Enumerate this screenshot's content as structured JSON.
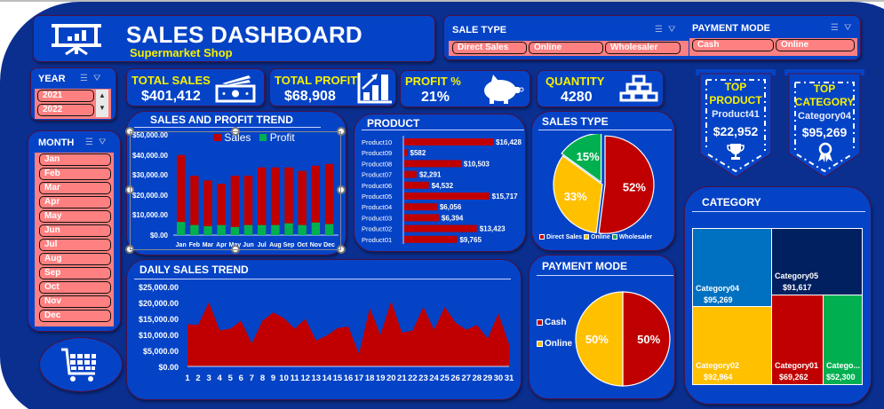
{
  "header": {
    "title": "SALES DASHBOARD",
    "subtitle": "Supermarket Shop",
    "icon": "presentation-chart-icon"
  },
  "slicers": {
    "sale_type": {
      "label": "SALE TYPE",
      "items": [
        "Direct Sales",
        "Online",
        "Wholesaler"
      ]
    },
    "payment_mode": {
      "label": "PAYMENT MODE",
      "items": [
        "Cash",
        "Online"
      ]
    },
    "year": {
      "label": "YEAR",
      "items": [
        "2021",
        "2022"
      ]
    },
    "month": {
      "label": "MONTH",
      "items": [
        "Jan",
        "Feb",
        "Mar",
        "Apr",
        "May",
        "Jun",
        "Jul",
        "Aug",
        "Sep",
        "Oct",
        "Nov",
        "Dec"
      ]
    },
    "icons": {
      "multi_select": "multi-select-icon",
      "clear_filter": "clear-filter-icon"
    }
  },
  "kpis": {
    "total_sales": {
      "label": "TOTAL SALES",
      "value": "$401,412",
      "icon": "money-icon"
    },
    "total_profit": {
      "label": "TOTAL PROFIT",
      "value": "$68,908",
      "icon": "growth-chart-icon"
    },
    "profit_pct": {
      "label": "PROFIT %",
      "value": "21%",
      "icon": "piggy-bank-icon"
    },
    "quantity": {
      "label": "QUANTITY",
      "value": "4280",
      "icon": "gold-bars-icon"
    }
  },
  "top_product": {
    "line1": "TOP",
    "line2": "PRODUCT",
    "name": "Product41",
    "value": "$22,952",
    "icon": "trophy-icon"
  },
  "top_category": {
    "line1": "TOP",
    "line2": "CATEGORY",
    "name": "Category04",
    "value": "$95,269",
    "icon": "award-ribbon-icon"
  },
  "colors": {
    "background": "#0b2f8f",
    "card": "#0543c6",
    "sales": "#c00000",
    "profit": "#00b050",
    "online": "#ffc000",
    "accent_text": "#f7f000",
    "slicer_chip": "#ff8080"
  },
  "chart_data": [
    {
      "type": "bar",
      "title": "SALES AND PROFIT TREND",
      "categories": [
        "Jan",
        "Feb",
        "Mar",
        "Apr",
        "May",
        "Jun",
        "Jul",
        "Aug",
        "Sep",
        "Oct",
        "Nov",
        "Dec"
      ],
      "series": [
        {
          "name": "Sales",
          "values": [
            41400,
            30700,
            28300,
            26500,
            30700,
            30700,
            35000,
            35000,
            35000,
            33200,
            35900,
            36800
          ]
        },
        {
          "name": "Profit",
          "values": [
            6800,
            5200,
            4600,
            5200,
            4200,
            5200,
            5200,
            5200,
            6100,
            5200,
            6500,
            5700
          ]
        }
      ],
      "yticks": [
        "$50,000.00",
        "$40,000.00",
        "$30,000.00",
        "$20,000.00",
        "$10,000.00",
        "$0.00"
      ],
      "ylim": [
        0,
        50000
      ],
      "legend_position": "top",
      "overlap": true
    },
    {
      "type": "bar",
      "orientation": "horizontal",
      "title": "PRODUCT",
      "categories": [
        "Product10",
        "Product09",
        "Product08",
        "Product07",
        "Product06",
        "Product05",
        "Product04",
        "Product03",
        "Product02",
        "Product01"
      ],
      "values": [
        16428,
        582,
        10503,
        2291,
        4532,
        15717,
        6056,
        6394,
        13423,
        9765
      ],
      "labels": [
        "$16,428",
        "$582",
        "$10,503",
        "$2,291",
        "$4,532",
        "$15,717",
        "$6,056",
        "$6,394",
        "$13,423",
        "$9,765"
      ]
    },
    {
      "type": "pie",
      "title": "SALES TYPE",
      "categories": [
        "Direct Sales",
        "Online",
        "Wholesaler"
      ],
      "values": [
        52,
        33,
        15
      ],
      "labels": [
        "52%",
        "33%",
        "15%"
      ],
      "legend_position": "bottom"
    },
    {
      "type": "area",
      "title": "DAILY SALES TREND",
      "x": [
        "1",
        "2",
        "3",
        "4",
        "5",
        "6",
        "7",
        "8",
        "9",
        "10",
        "11",
        "12",
        "13",
        "14",
        "15",
        "16",
        "17",
        "18",
        "19",
        "20",
        "21",
        "22",
        "23",
        "24",
        "25",
        "26",
        "27",
        "28",
        "29",
        "30",
        "31"
      ],
      "values": [
        13200,
        13000,
        20100,
        11300,
        11800,
        14300,
        7200,
        14300,
        16900,
        15100,
        11800,
        14900,
        8100,
        9700,
        12000,
        12500,
        3900,
        18300,
        9900,
        20400,
        10600,
        11200,
        18600,
        11500,
        18600,
        13700,
        11500,
        13000,
        8700,
        16600,
        6900
      ],
      "yticks": [
        "$25,000.00",
        "$20,000.00",
        "$15,000.00",
        "$10,000.00",
        "$5,000.00",
        "$0.00"
      ],
      "ylim": [
        0,
        25000
      ]
    },
    {
      "type": "pie",
      "title": "PAYMENT MODE",
      "categories": [
        "Cash",
        "Online"
      ],
      "values": [
        50,
        50
      ],
      "labels": [
        "50%",
        "50%"
      ],
      "legend_position": "left"
    },
    {
      "type": "treemap",
      "title": "CATEGORY",
      "categories": [
        "Category04",
        "Category05",
        "Category02",
        "Category01",
        "Category03"
      ],
      "display_names": [
        "Category04",
        "Category05",
        "Category02",
        "Category01",
        "Catego..."
      ],
      "values": [
        95269,
        91617,
        92964,
        69262,
        52300
      ],
      "labels": [
        "$95,269",
        "$91,617",
        "$92,964",
        "$69,262",
        "$52,300"
      ]
    }
  ],
  "footer": {
    "icon": "shopping-cart-icon"
  }
}
